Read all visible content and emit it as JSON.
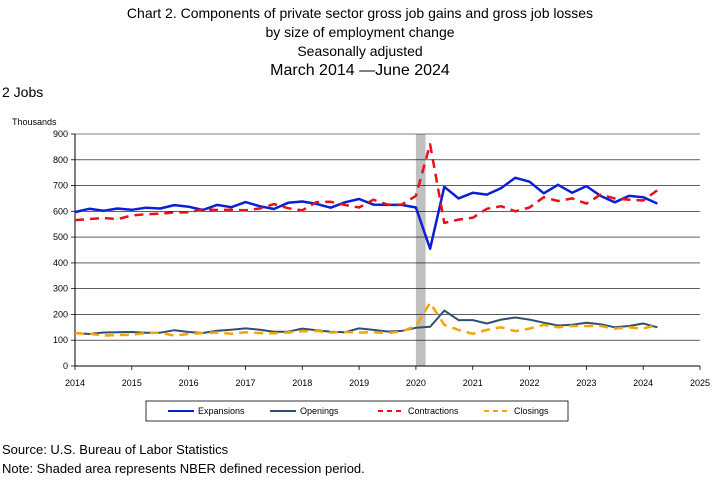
{
  "title": {
    "line1": "Chart 2. Components of private sector gross job gains and gross job losses",
    "line2": "by size of employment change",
    "line3": "Seasonally adjusted",
    "line4": "March 2014  —June 2024"
  },
  "section_label": "2 Jobs",
  "footer": {
    "source": "Source: U.S. Bureau of Labor Statistics",
    "note": "Note: Shaded area represents NBER defined recession period."
  },
  "colors": {
    "expansions": "#0a1fd6",
    "openings": "#2f4f6f",
    "contractions": "#e8101a",
    "closings": "#f5a400",
    "recession": "#c0c0c0"
  },
  "chart_data": {
    "type": "line",
    "ylabel": "Thousands",
    "ylim": [
      0,
      900
    ],
    "yticks": [
      0,
      100,
      200,
      300,
      400,
      500,
      600,
      700,
      800,
      900
    ],
    "xlim": [
      2014,
      2025
    ],
    "xticks": [
      2014,
      2015,
      2016,
      2017,
      2018,
      2019,
      2020,
      2021,
      2022,
      2023,
      2024,
      2025
    ],
    "grid": true,
    "legend_position": "bottom",
    "recession": [
      2020.0,
      2020.17
    ],
    "x": [
      2014.0,
      2014.25,
      2014.5,
      2014.75,
      2015.0,
      2015.25,
      2015.5,
      2015.75,
      2016.0,
      2016.25,
      2016.5,
      2016.75,
      2017.0,
      2017.25,
      2017.5,
      2017.75,
      2018.0,
      2018.25,
      2018.5,
      2018.75,
      2019.0,
      2019.25,
      2019.5,
      2019.75,
      2020.0,
      2020.25,
      2020.5,
      2020.75,
      2021.0,
      2021.25,
      2021.5,
      2021.75,
      2022.0,
      2022.25,
      2022.5,
      2022.75,
      2023.0,
      2023.25,
      2023.5,
      2023.75,
      2024.0,
      2024.25
    ],
    "series": [
      {
        "name": "Expansions",
        "style": "solid",
        "width": 2.5,
        "values": [
          597,
          610,
          602,
          611,
          606,
          614,
          611,
          624,
          618,
          605,
          625,
          616,
          636,
          620,
          609,
          633,
          638,
          629,
          614,
          635,
          648,
          626,
          625,
          625,
          615,
          455,
          695,
          650,
          672,
          665,
          690,
          730,
          715,
          670,
          703,
          672,
          698,
          660,
          635,
          660,
          655,
          630
        ]
      },
      {
        "name": "Openings",
        "style": "solid",
        "width": 2,
        "values": [
          128,
          124,
          130,
          131,
          132,
          129,
          129,
          139,
          132,
          128,
          137,
          141,
          146,
          141,
          133,
          133,
          145,
          139,
          133,
          131,
          146,
          140,
          134,
          136,
          148,
          152,
          215,
          178,
          178,
          165,
          180,
          188,
          180,
          168,
          157,
          160,
          168,
          162,
          150,
          155,
          165,
          150
        ]
      },
      {
        "name": "Contractions",
        "style": "dashed",
        "width": 2.5,
        "values": [
          566,
          570,
          574,
          570,
          584,
          589,
          591,
          596,
          596,
          608,
          605,
          606,
          604,
          611,
          628,
          612,
          604,
          636,
          637,
          625,
          615,
          645,
          626,
          626,
          660,
          860,
          555,
          568,
          575,
          610,
          620,
          600,
          615,
          655,
          640,
          650,
          630,
          665,
          650,
          645,
          642,
          682
        ]
      },
      {
        "name": "Closings",
        "style": "dashed",
        "width": 2.5,
        "values": [
          127,
          125,
          118,
          120,
          121,
          128,
          129,
          118,
          124,
          128,
          130,
          125,
          131,
          128,
          127,
          130,
          135,
          136,
          130,
          132,
          130,
          131,
          128,
          134,
          155,
          245,
          160,
          140,
          125,
          140,
          150,
          135,
          145,
          160,
          150,
          155,
          155,
          155,
          145,
          150,
          145,
          160
        ]
      }
    ]
  }
}
